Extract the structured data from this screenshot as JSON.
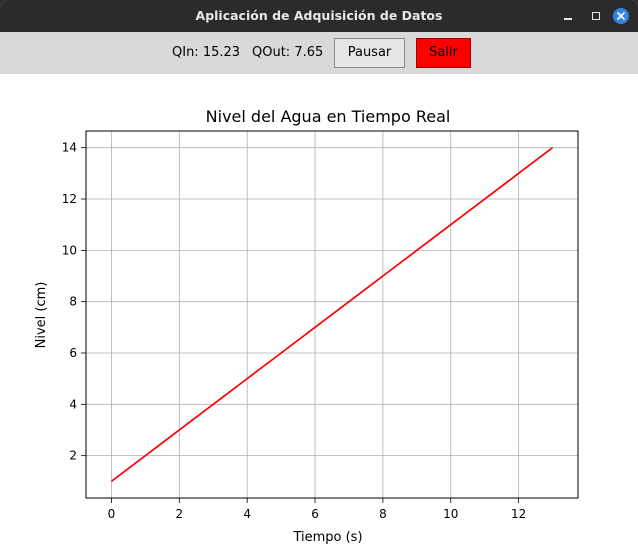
{
  "window": {
    "title": "Aplicación de Adquisición de Datos"
  },
  "toolbar": {
    "qin_label": "QIn: 15.23",
    "qout_label": "QOut: 7.65",
    "pause_label": "Pausar",
    "exit_label": "Salir",
    "exit_color": "#ff0000"
  },
  "chart_data": {
    "type": "line",
    "title": "Nivel del Agua en Tiempo Real",
    "xlabel": "Tiempo (s)",
    "ylabel": "Nivel (cm)",
    "xlim": [
      -0.75,
      13.75
    ],
    "ylim": [
      0.35,
      14.65
    ],
    "xticks": [
      0,
      2,
      4,
      6,
      8,
      10,
      12
    ],
    "yticks": [
      2,
      4,
      6,
      8,
      10,
      12,
      14
    ],
    "grid": true,
    "series": [
      {
        "color": "#ff0000",
        "x": [
          0,
          1,
          2,
          3,
          4,
          5,
          6,
          7,
          8,
          9,
          10,
          11,
          12,
          13
        ],
        "y": [
          1,
          2,
          3,
          4,
          5,
          6,
          7,
          8,
          9,
          10,
          11,
          12,
          13,
          14
        ]
      }
    ]
  }
}
